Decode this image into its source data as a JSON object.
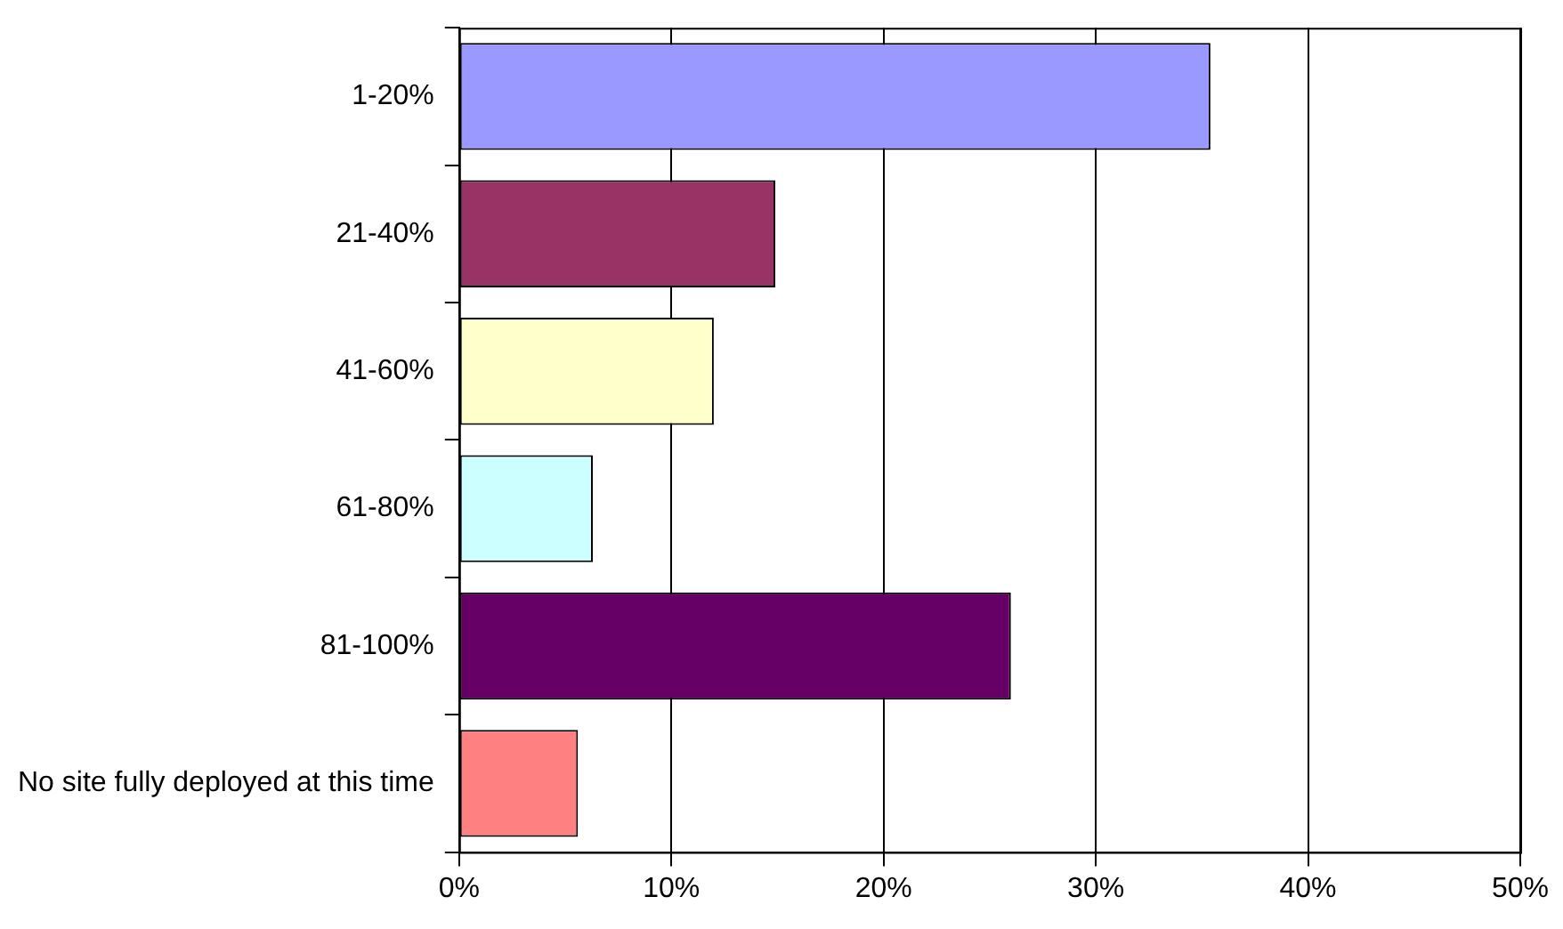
{
  "chart_data": {
    "type": "bar",
    "orientation": "horizontal",
    "categories": [
      "1-20%",
      "21-40%",
      "41-60%",
      "61-80%",
      "81-100%",
      "No site fully deployed at this time"
    ],
    "values": [
      35.4,
      14.9,
      12.0,
      6.3,
      26.0,
      5.6
    ],
    "colors": [
      "#9999ff",
      "#993366",
      "#ffffcc",
      "#ccffff",
      "#660066",
      "#ff8080"
    ],
    "xlim": [
      0,
      50
    ],
    "xticks": [
      {
        "value": 0,
        "label": "0%"
      },
      {
        "value": 10,
        "label": "10%"
      },
      {
        "value": 20,
        "label": "20%"
      },
      {
        "value": 30,
        "label": "30%"
      },
      {
        "value": 40,
        "label": "40%"
      },
      {
        "value": 50,
        "label": "50%"
      }
    ],
    "grid": "x",
    "legend": false
  }
}
